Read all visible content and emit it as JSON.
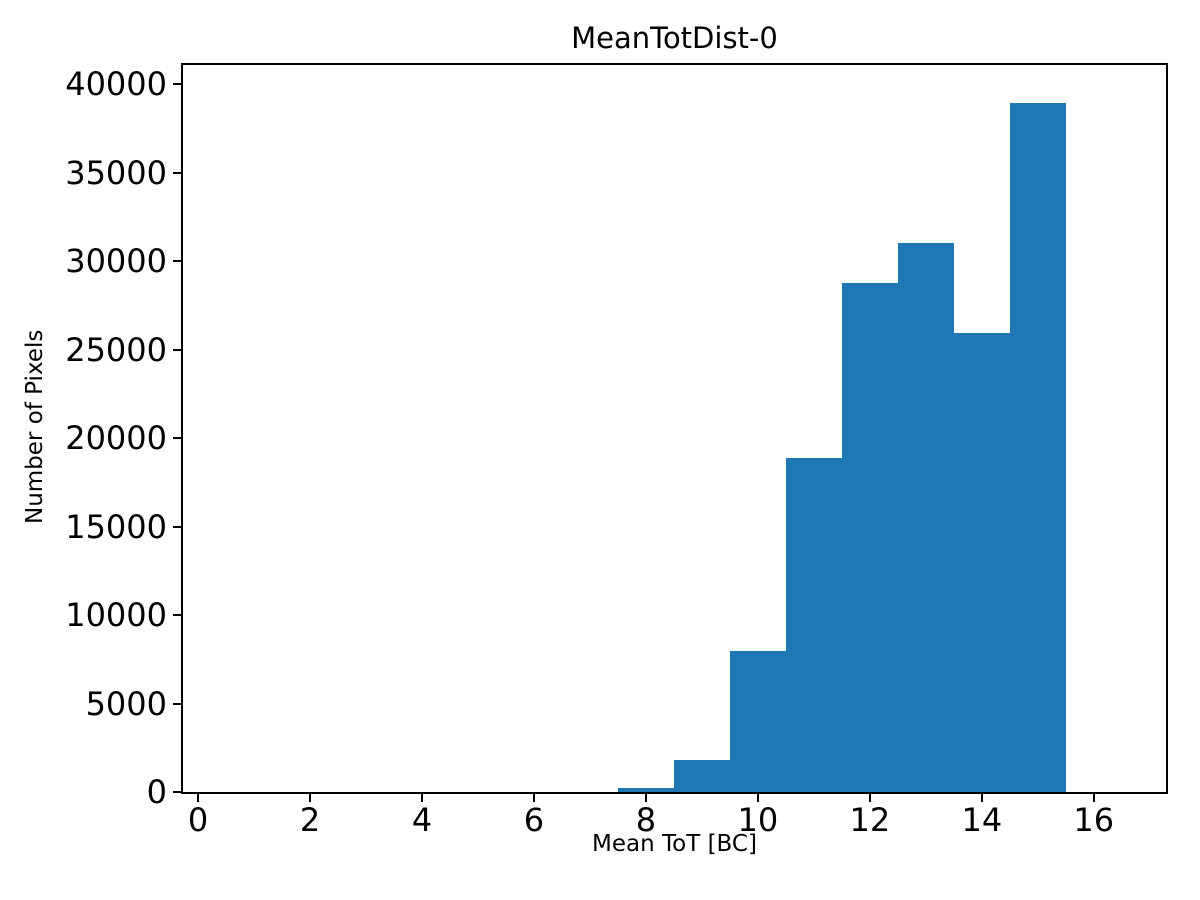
{
  "chart_data": {
    "type": "bar",
    "subtype": "histogram",
    "title": "MeanTotDist-0",
    "xlabel": "Mean ToT [BC]",
    "ylabel": "Number of Pixels",
    "bar_color": "#1f77b4",
    "axis_color": "#000000",
    "background_color": "#ffffff",
    "grid": false,
    "legend": null,
    "xlim": [
      -0.27,
      17.29
    ],
    "ylim": [
      0,
      41075
    ],
    "bin_edges": [
      7.5,
      8.5,
      9.5,
      10.5,
      11.5,
      12.5,
      13.5,
      14.5,
      15.5
    ],
    "counts": [
      250,
      1800,
      7950,
      18850,
      28750,
      31000,
      25950,
      38950
    ],
    "xticks": [
      0,
      2,
      4,
      6,
      8,
      10,
      12,
      14,
      16
    ],
    "xtick_labels": [
      "0",
      "2",
      "4",
      "6",
      "8",
      "10",
      "12",
      "14",
      "16"
    ],
    "yticks": [
      0,
      5000,
      10000,
      15000,
      20000,
      25000,
      30000,
      35000,
      40000
    ],
    "ytick_labels": [
      "0",
      "5000",
      "10000",
      "15000",
      "20000",
      "25000",
      "30000",
      "35000",
      "40000"
    ]
  }
}
